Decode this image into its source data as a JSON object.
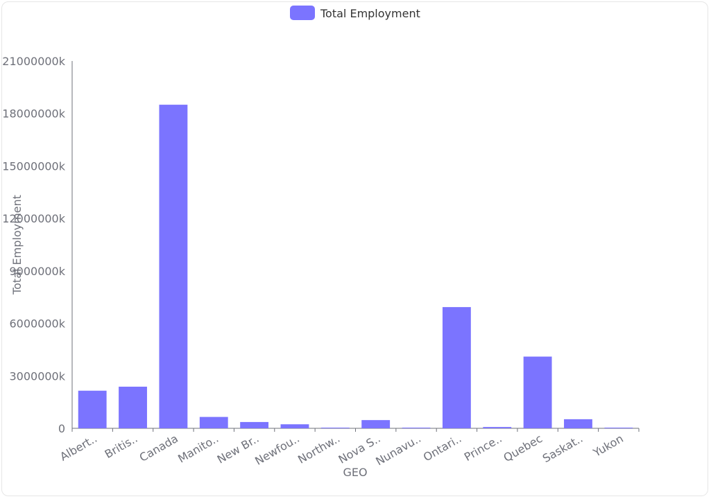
{
  "chart_data": {
    "type": "bar",
    "categories": [
      "Albert..",
      "Britis..",
      "Canada",
      "Manito..",
      "New Br..",
      "Newfou..",
      "Northw..",
      "Nova S..",
      "Nunavu..",
      "Ontari..",
      "Prince..",
      "Quebec",
      "Saskat..",
      "Yukon"
    ],
    "series": [
      {
        "name": "Total Employment",
        "color": "#7b74ff",
        "values": [
          2150000,
          2380000,
          18500000,
          650000,
          360000,
          230000,
          25000,
          470000,
          15000,
          6930000,
          75000,
          4100000,
          520000,
          25000
        ]
      }
    ],
    "yticks": [
      "0",
      "3000000k",
      "6000000k",
      "9000000k",
      "12000000k",
      "15000000k",
      "18000000k",
      "21000000k"
    ],
    "ylim": [
      0,
      21000000
    ],
    "xlabel": "GEO",
    "ylabel": "Total Employment",
    "legend": "top-center",
    "grid": false
  }
}
